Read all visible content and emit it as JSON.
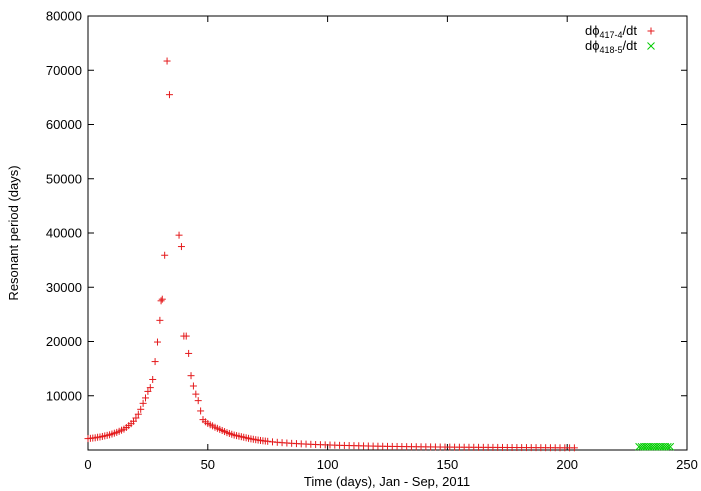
{
  "chart_data": {
    "type": "scatter",
    "title": "",
    "xlabel": "Time (days), Jan - Sep, 2011",
    "ylabel": "Resonant period (days)",
    "xlim": [
      0,
      250
    ],
    "ylim": [
      0,
      80000
    ],
    "xticks": [
      0,
      50,
      100,
      150,
      200,
      250
    ],
    "yticks": [
      10000,
      20000,
      30000,
      40000,
      50000,
      60000,
      70000,
      80000
    ],
    "x_tick_labels": [
      "0",
      "50",
      "100",
      "150",
      "200",
      "250"
    ],
    "y_tick_labels": [
      "10000",
      "20000",
      "30000",
      "40000",
      "50000",
      "60000",
      "70000",
      "80000"
    ],
    "grid": false,
    "legend_position": "top-right",
    "series": [
      {
        "label_main": "dϕ",
        "label_sub": "417-4",
        "label_tail": "/dt",
        "color": "#e41a1c",
        "marker": "plus",
        "points": [
          [
            0,
            2100
          ],
          [
            1,
            2150
          ],
          [
            2,
            2200
          ],
          [
            3,
            2250
          ],
          [
            4,
            2350
          ],
          [
            5,
            2400
          ],
          [
            6,
            2500
          ],
          [
            7,
            2600
          ],
          [
            8,
            2700
          ],
          [
            9,
            2800
          ],
          [
            10,
            2950
          ],
          [
            11,
            3100
          ],
          [
            12,
            3250
          ],
          [
            13,
            3450
          ],
          [
            14,
            3650
          ],
          [
            15,
            3850
          ],
          [
            16,
            4150
          ],
          [
            17,
            4500
          ],
          [
            18,
            4850
          ],
          [
            19,
            5300
          ],
          [
            20,
            5900
          ],
          [
            21,
            6600
          ],
          [
            22,
            7500
          ],
          [
            23,
            8600
          ],
          [
            24,
            9600
          ],
          [
            25,
            10800
          ],
          [
            26,
            11500
          ],
          [
            27,
            13000
          ],
          [
            28,
            16300
          ],
          [
            29,
            19900
          ],
          [
            30,
            23900
          ],
          [
            30.5,
            27500
          ],
          [
            31,
            27800
          ],
          [
            32,
            35900
          ],
          [
            33,
            71700
          ],
          [
            34,
            65500
          ],
          [
            38,
            39600
          ],
          [
            39,
            37500
          ],
          [
            40,
            21000
          ],
          [
            41,
            21000
          ],
          [
            42,
            17800
          ],
          [
            43,
            13700
          ],
          [
            44,
            11800
          ],
          [
            45,
            10300
          ],
          [
            46,
            9100
          ],
          [
            47,
            7200
          ],
          [
            48,
            5600
          ],
          [
            49,
            5200
          ],
          [
            50,
            4900
          ],
          [
            51,
            4650
          ],
          [
            52,
            4450
          ],
          [
            53,
            4200
          ],
          [
            54,
            4000
          ],
          [
            55,
            3800
          ],
          [
            56,
            3600
          ],
          [
            57,
            3400
          ],
          [
            58,
            3200
          ],
          [
            59,
            3050
          ],
          [
            60,
            2900
          ],
          [
            61,
            2750
          ],
          [
            62,
            2650
          ],
          [
            63,
            2550
          ],
          [
            64,
            2450
          ],
          [
            65,
            2350
          ],
          [
            66,
            2250
          ],
          [
            67,
            2150
          ],
          [
            68,
            2050
          ],
          [
            69,
            1980
          ],
          [
            70,
            1900
          ],
          [
            71,
            1830
          ],
          [
            72,
            1760
          ],
          [
            73,
            1700
          ],
          [
            74,
            1650
          ],
          [
            75,
            1600
          ],
          [
            77,
            1500
          ],
          [
            79,
            1420
          ],
          [
            81,
            1350
          ],
          [
            83,
            1290
          ],
          [
            85,
            1230
          ],
          [
            87,
            1180
          ],
          [
            89,
            1130
          ],
          [
            91,
            1090
          ],
          [
            93,
            1050
          ],
          [
            95,
            1010
          ],
          [
            97,
            980
          ],
          [
            99,
            950
          ],
          [
            101,
            920
          ],
          [
            103,
            890
          ],
          [
            105,
            860
          ],
          [
            107,
            840
          ],
          [
            109,
            820
          ],
          [
            111,
            800
          ],
          [
            113,
            780
          ],
          [
            115,
            760
          ],
          [
            117,
            740
          ],
          [
            119,
            720
          ],
          [
            121,
            700
          ],
          [
            123,
            690
          ],
          [
            125,
            670
          ],
          [
            127,
            660
          ],
          [
            129,
            650
          ],
          [
            131,
            635
          ],
          [
            133,
            620
          ],
          [
            135,
            610
          ],
          [
            137,
            600
          ],
          [
            139,
            590
          ],
          [
            141,
            580
          ],
          [
            143,
            570
          ],
          [
            145,
            560
          ],
          [
            147,
            550
          ],
          [
            149,
            540
          ],
          [
            151,
            535
          ],
          [
            153,
            525
          ],
          [
            155,
            520
          ],
          [
            157,
            510
          ],
          [
            159,
            505
          ],
          [
            161,
            500
          ],
          [
            163,
            495
          ],
          [
            165,
            490
          ],
          [
            167,
            485
          ],
          [
            169,
            480
          ],
          [
            171,
            475
          ],
          [
            173,
            470
          ],
          [
            175,
            465
          ],
          [
            177,
            460
          ],
          [
            179,
            455
          ],
          [
            181,
            450
          ],
          [
            183,
            445
          ],
          [
            185,
            440
          ],
          [
            187,
            435
          ],
          [
            189,
            430
          ],
          [
            191,
            425
          ],
          [
            193,
            420
          ],
          [
            195,
            415
          ],
          [
            197,
            410
          ],
          [
            199,
            405
          ],
          [
            201,
            400
          ],
          [
            203,
            398
          ]
        ]
      },
      {
        "label_main": "dϕ",
        "label_sub": "418-5",
        "label_tail": "/dt",
        "color": "#00cc00",
        "marker": "cross",
        "points": [
          [
            230,
            600
          ],
          [
            231,
            600
          ],
          [
            232,
            600
          ],
          [
            233,
            600
          ],
          [
            234,
            600
          ],
          [
            235,
            600
          ],
          [
            236,
            600
          ],
          [
            237,
            600
          ],
          [
            238,
            600
          ],
          [
            239,
            600
          ],
          [
            240,
            600
          ],
          [
            241,
            600
          ],
          [
            242,
            600
          ],
          [
            243,
            600
          ]
        ]
      }
    ]
  }
}
